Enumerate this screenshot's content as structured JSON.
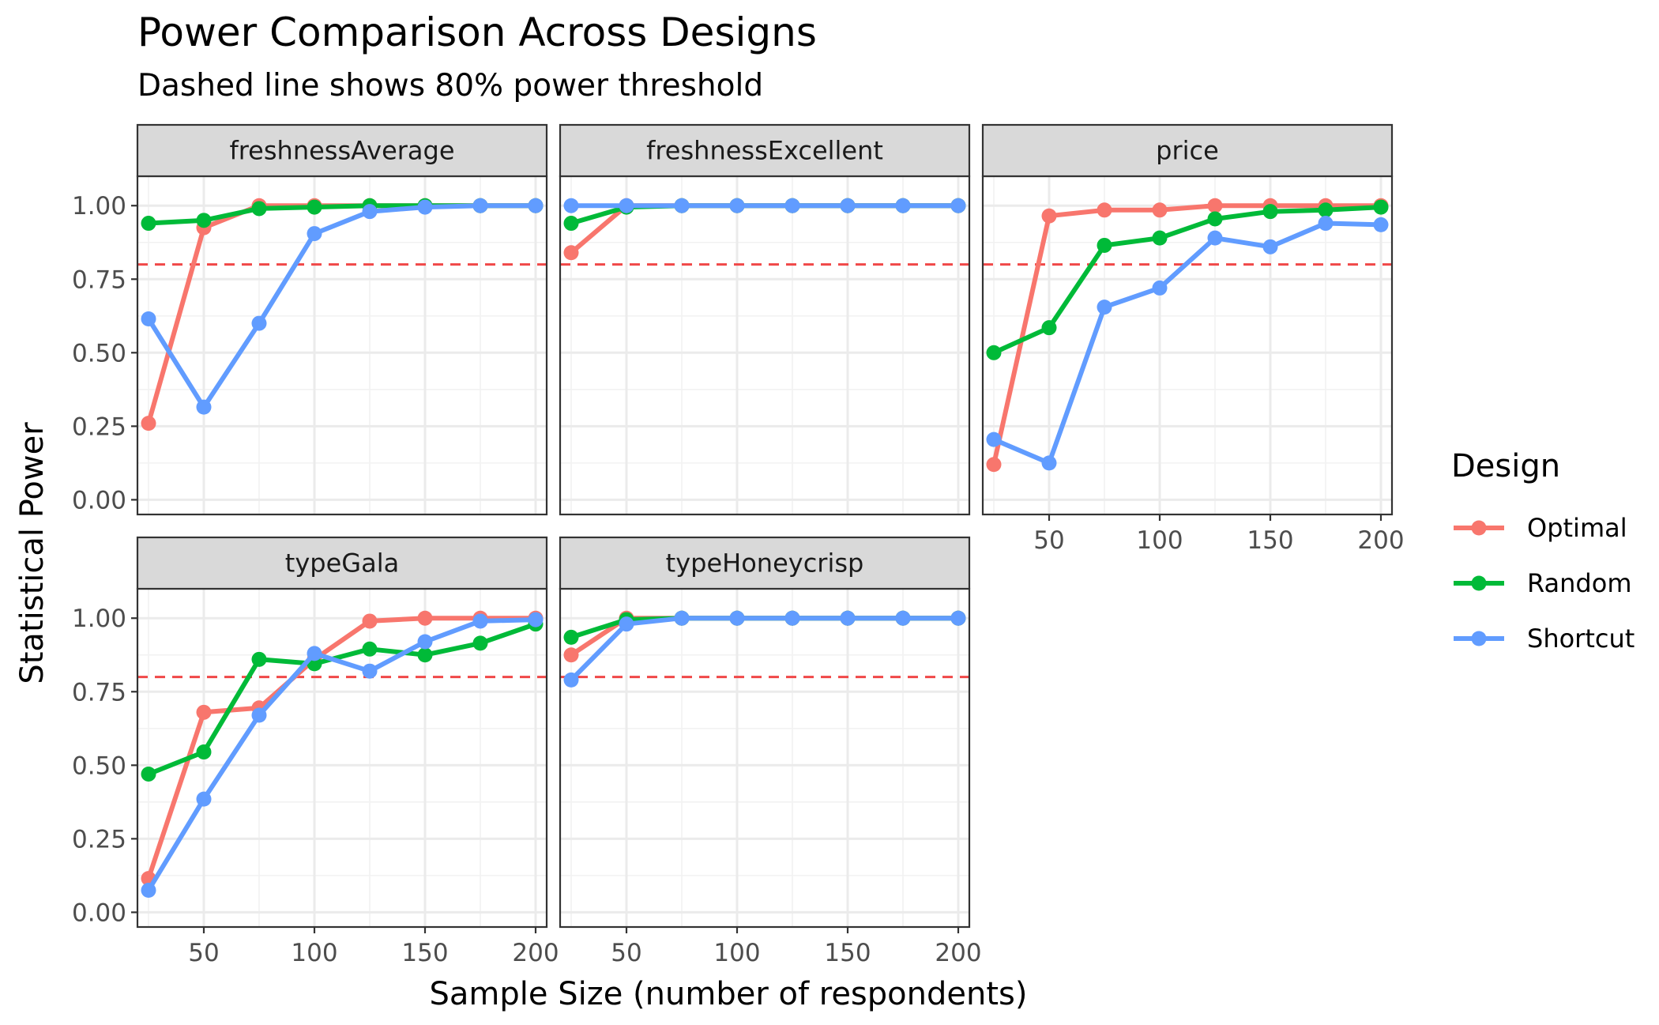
{
  "chart_data": {
    "type": "line",
    "title": "Power Comparison Across Designs",
    "subtitle": "Dashed line shows 80% power threshold",
    "xlabel": "Sample Size (number of respondents)",
    "ylabel": "Statistical Power",
    "xlim": [
      20,
      205
    ],
    "ylim": [
      -0.05,
      1.1
    ],
    "x_ticks": [
      50,
      100,
      150,
      200
    ],
    "x_tick_labels": [
      "50",
      "100",
      "150",
      "200"
    ],
    "y_ticks": [
      0,
      0.25,
      0.5,
      0.75,
      1.0
    ],
    "y_tick_labels": [
      "0.00",
      "0.25",
      "0.50",
      "0.75",
      "1.00"
    ],
    "threshold": 0.8,
    "threshold_color": "#f04848",
    "grid": true,
    "legend": {
      "title": "Design",
      "position": "right"
    },
    "x": [
      25,
      50,
      75,
      100,
      125,
      150,
      175,
      200
    ],
    "series_styles": [
      {
        "name": "Optimal",
        "color": "#f8766d"
      },
      {
        "name": "Random",
        "color": "#00ba38"
      },
      {
        "name": "Shortcut",
        "color": "#619cff"
      }
    ],
    "panels": [
      {
        "name": "freshnessAverage",
        "series": [
          {
            "name": "Optimal",
            "values": [
              0.26,
              0.925,
              1.0,
              1.0,
              1.0,
              1.0,
              1.0,
              1.0
            ]
          },
          {
            "name": "Random",
            "values": [
              0.94,
              0.95,
              0.99,
              0.995,
              1.0,
              1.0,
              1.0,
              1.0
            ]
          },
          {
            "name": "Shortcut",
            "values": [
              0.615,
              0.315,
              0.6,
              0.905,
              0.98,
              0.995,
              1.0,
              1.0
            ]
          }
        ]
      },
      {
        "name": "freshnessExcellent",
        "series": [
          {
            "name": "Optimal",
            "values": [
              0.84,
              1.0,
              1.0,
              1.0,
              1.0,
              1.0,
              1.0,
              1.0
            ]
          },
          {
            "name": "Random",
            "values": [
              0.94,
              0.995,
              1.0,
              1.0,
              1.0,
              1.0,
              1.0,
              1.0
            ]
          },
          {
            "name": "Shortcut",
            "values": [
              1.0,
              1.0,
              1.0,
              1.0,
              1.0,
              1.0,
              1.0,
              1.0
            ]
          }
        ]
      },
      {
        "name": "price",
        "series": [
          {
            "name": "Optimal",
            "values": [
              0.12,
              0.965,
              0.985,
              0.985,
              1.0,
              1.0,
              1.0,
              1.0
            ]
          },
          {
            "name": "Random",
            "values": [
              0.5,
              0.585,
              0.865,
              0.89,
              0.955,
              0.98,
              0.985,
              0.995
            ]
          },
          {
            "name": "Shortcut",
            "values": [
              0.205,
              0.125,
              0.655,
              0.72,
              0.89,
              0.86,
              0.94,
              0.935
            ]
          }
        ]
      },
      {
        "name": "typeGala",
        "series": [
          {
            "name": "Optimal",
            "values": [
              0.115,
              0.68,
              0.695,
              0.86,
              0.99,
              1.0,
              1.0,
              1.0
            ]
          },
          {
            "name": "Random",
            "values": [
              0.47,
              0.545,
              0.86,
              0.845,
              0.895,
              0.875,
              0.915,
              0.98
            ]
          },
          {
            "name": "Shortcut",
            "values": [
              0.075,
              0.385,
              0.67,
              0.88,
              0.82,
              0.92,
              0.99,
              0.995
            ]
          }
        ]
      },
      {
        "name": "typeHoneycrisp",
        "series": [
          {
            "name": "Optimal",
            "values": [
              0.875,
              1.0,
              1.0,
              1.0,
              1.0,
              1.0,
              1.0,
              1.0
            ]
          },
          {
            "name": "Random",
            "values": [
              0.935,
              0.995,
              1.0,
              1.0,
              1.0,
              1.0,
              1.0,
              1.0
            ]
          },
          {
            "name": "Shortcut",
            "values": [
              0.79,
              0.98,
              1.0,
              1.0,
              1.0,
              1.0,
              1.0,
              1.0
            ]
          }
        ]
      }
    ]
  }
}
